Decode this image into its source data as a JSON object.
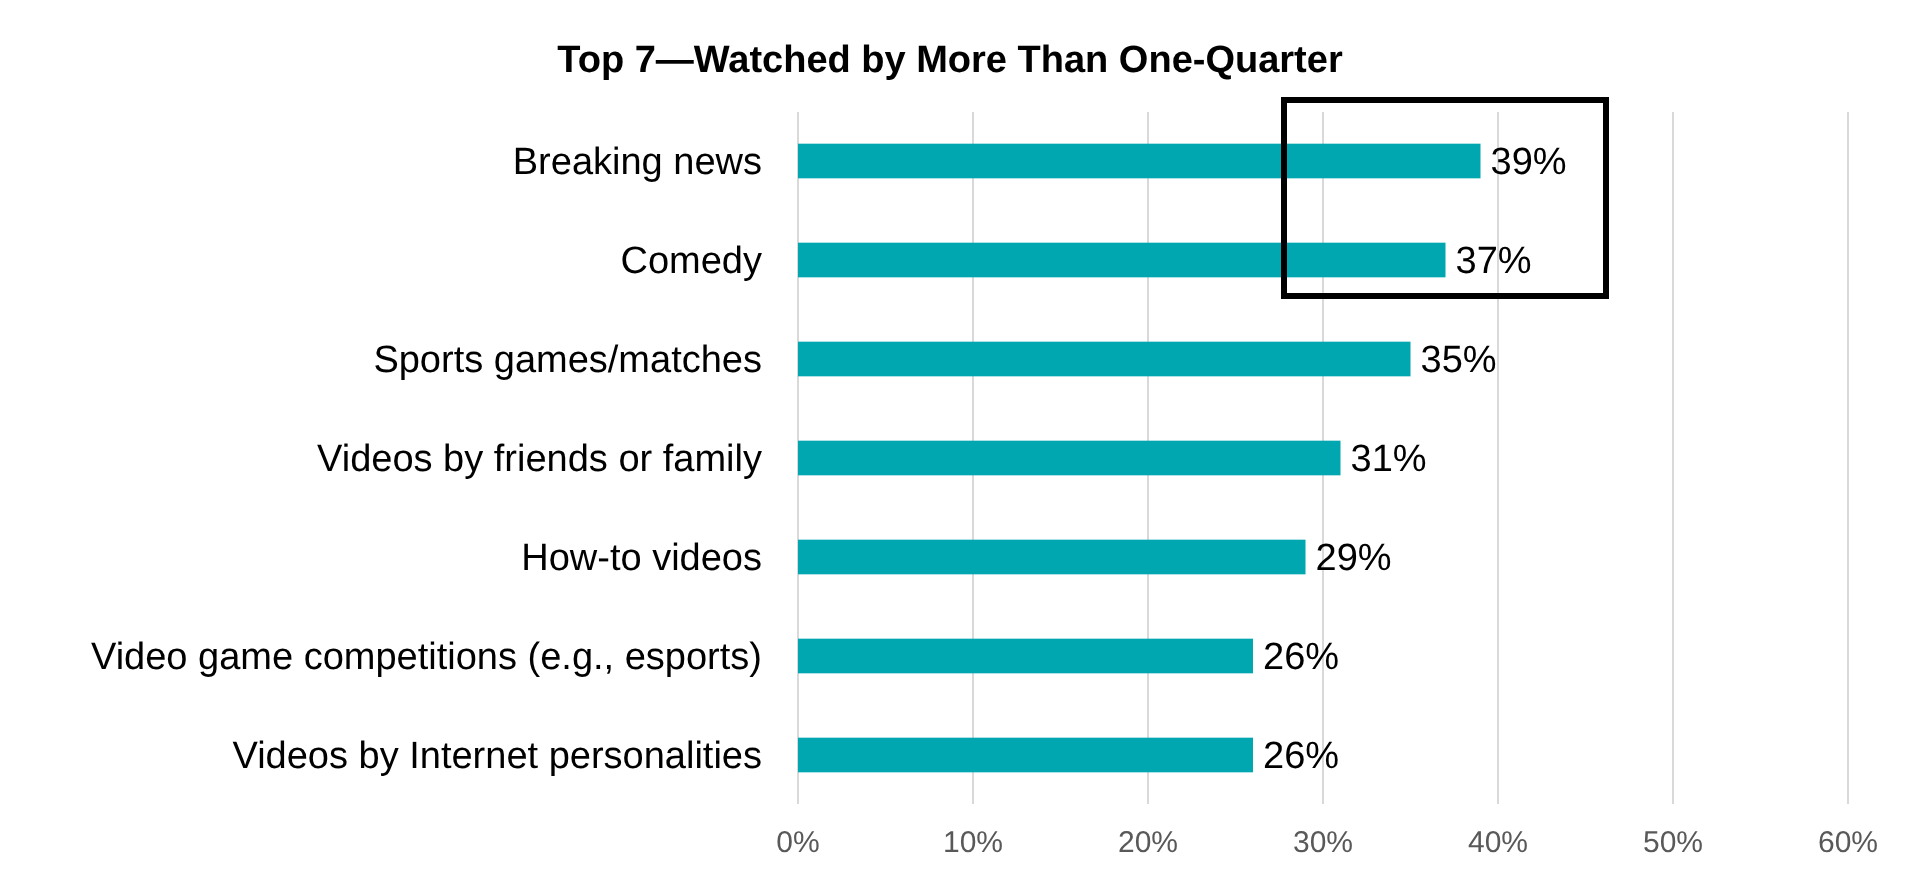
{
  "chart_data": {
    "type": "bar",
    "orientation": "horizontal",
    "title": "Top 7—Watched by More Than One-Quarter",
    "categories": [
      "Breaking news",
      "Comedy",
      "Sports games/matches",
      "Videos by friends or family",
      "How-to videos",
      "Video game competitions (e.g., esports)",
      "Videos by Internet personalities"
    ],
    "values": [
      39,
      37,
      35,
      31,
      29,
      26,
      26
    ],
    "color": "#00a7b0",
    "value_labels": [
      "39%",
      "37%",
      "35%",
      "31%",
      "29%",
      "26%",
      "26%"
    ],
    "xlim": [
      0,
      60
    ],
    "xticks": [
      {
        "value": 0,
        "label": "0%"
      },
      {
        "value": 10,
        "label": "10%"
      },
      {
        "value": 20,
        "label": "20%"
      },
      {
        "value": 30,
        "label": "30%"
      },
      {
        "value": 40,
        "label": "40%"
      },
      {
        "value": 50,
        "label": "50%"
      },
      {
        "value": 60,
        "label": "60%"
      }
    ],
    "grid": "x"
  }
}
